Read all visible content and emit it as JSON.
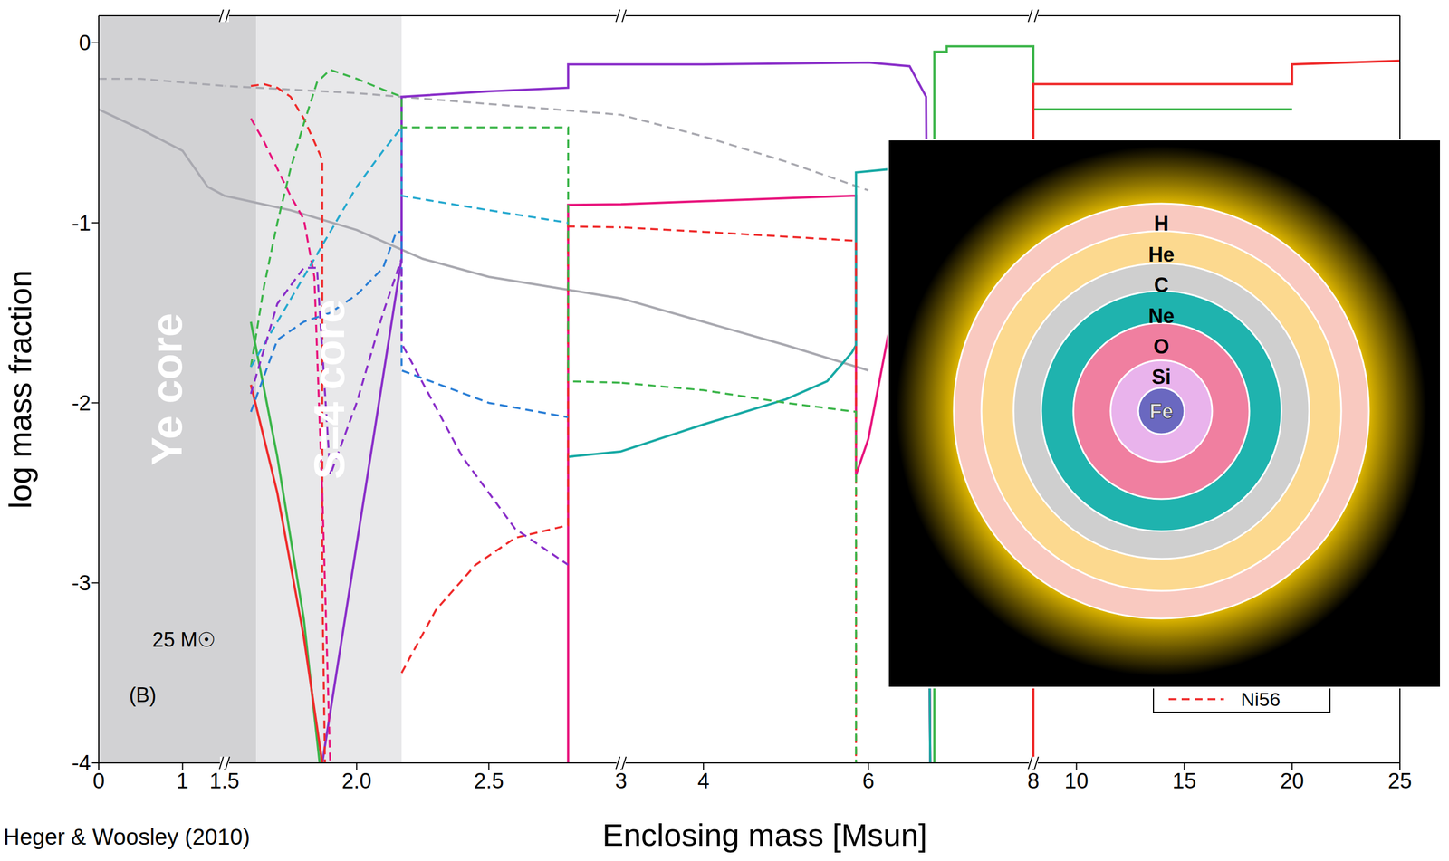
{
  "chart_data": {
    "type": "line",
    "x_label": "Enclosing mass [Msun]",
    "y_label": "log mass fraction",
    "credit": "Heger & Woosley (2010)",
    "annotations": [
      "25 M☉",
      "(B)"
    ],
    "legend": "lower right",
    "ylim": [
      -4,
      0.15
    ],
    "yticks": [
      -4,
      -3,
      -2,
      -1,
      0
    ],
    "x_segments": [
      {
        "xlim": [
          0,
          1.5
        ],
        "xticks": [
          0,
          1,
          1.5
        ]
      },
      {
        "xlim": [
          1.5,
          3
        ],
        "xticks": [
          {
            "value": 2,
            "label": "2.0"
          },
          2.5
        ]
      },
      {
        "xlim": [
          3,
          8
        ],
        "xticks": [
          3,
          4,
          6,
          8
        ]
      },
      {
        "xlim": [
          8,
          25
        ],
        "xticks": [
          10,
          15,
          20,
          25
        ]
      }
    ],
    "regions": [
      {
        "label": "Ye core",
        "x": [
          0,
          1.62
        ],
        "color": "#d2d2d4"
      },
      {
        "label": "S=4 core",
        "x": [
          1.62,
          2.17
        ],
        "color": "#e8e8ea"
      }
    ],
    "series": [
      {
        "color": "#a9a9b0",
        "line_style": "dashed",
        "x": [
          0,
          0.5,
          1,
          1.5,
          1.75,
          2,
          2.25,
          2.5,
          3,
          4,
          5,
          6
        ],
        "values": [
          -0.2,
          -0.2,
          -0.22,
          -0.24,
          -0.26,
          -0.28,
          -0.31,
          -0.34,
          -0.4,
          -0.52,
          -0.66,
          -0.82
        ]
      },
      {
        "color": "#a9a9b0",
        "line_style": "solid",
        "x": [
          0,
          0.5,
          1,
          1.3,
          1.5,
          1.75,
          2,
          2.25,
          2.5,
          3,
          4,
          5,
          6
        ],
        "values": [
          -0.37,
          -0.48,
          -0.6,
          -0.8,
          -0.85,
          -0.93,
          -1.04,
          -1.2,
          -1.3,
          -1.42,
          -1.55,
          -1.68,
          -1.82
        ]
      },
      {
        "color": "#8a2fc9",
        "line_style": "solid",
        "x": [
          1.87,
          2.17,
          2.17,
          2.5,
          2.8,
          2.8,
          4,
          6,
          6.5,
          6.7,
          6.75
        ],
        "values": [
          -4,
          -1.2,
          -0.3,
          -0.27,
          -0.25,
          -0.12,
          -0.12,
          -0.11,
          -0.13,
          -0.3,
          -4
        ]
      },
      {
        "color": "#e8157d",
        "line_style": "solid",
        "x": [
          2.8,
          2.8,
          4,
          5.8,
          5.85,
          5.85,
          6,
          6.5,
          6.7,
          6.75
        ],
        "values": [
          -4,
          -0.9,
          -0.88,
          -0.85,
          -0.85,
          -2.4,
          -2.2,
          -1.0,
          -0.9,
          -4
        ]
      },
      {
        "color": "#17a9a4",
        "line_style": "solid",
        "x": [
          2.8,
          3,
          4,
          5,
          5.5,
          5.8,
          5.85,
          5.85,
          6.3,
          6.7,
          6.75
        ],
        "values": [
          -2.3,
          -2.27,
          -2.12,
          -1.98,
          -1.88,
          -1.72,
          -1.68,
          -0.72,
          -0.7,
          -0.8,
          -4
        ]
      },
      {
        "color": "#3cb54a",
        "line_style": "solid",
        "x": [
          1.6,
          1.7,
          1.8,
          1.86,
          1.86,
          6.8,
          6.8,
          6.95,
          6.95,
          8,
          8,
          20
        ],
        "values": [
          -1.55,
          -2.3,
          -3.2,
          -4,
          null,
          -4,
          -0.05,
          -0.05,
          -0.02,
          -0.02,
          -0.37,
          -0.37
        ]
      },
      {
        "color": "#ef2b2b",
        "line_style": "solid",
        "x": [
          1.6,
          1.7,
          1.8,
          1.87,
          1.87,
          8,
          8,
          20,
          20,
          25
        ],
        "values": [
          -1.9,
          -2.5,
          -3.3,
          -4,
          null,
          -4,
          -0.23,
          -0.23,
          -0.12,
          -0.1
        ]
      },
      {
        "name": "Ni56",
        "color": "#ef2b2b",
        "line_style": "dashed",
        "x": [
          1.6,
          1.65,
          1.7,
          1.75,
          1.8,
          1.84,
          1.87,
          1.87,
          1.88
        ],
        "values": [
          -0.24,
          -0.23,
          -0.25,
          -0.3,
          -0.42,
          -0.55,
          -0.65,
          -3.0,
          -4
        ]
      },
      {
        "color": "#ef2b2b",
        "line_style": "dashed",
        "x": [
          2.17,
          2.3,
          2.45,
          2.6,
          2.8,
          2.8,
          4,
          5.85,
          5.85
        ],
        "values": [
          -3.5,
          -3.15,
          -2.9,
          -2.75,
          -2.68,
          -1.02,
          -1.05,
          -1.1,
          -4
        ]
      },
      {
        "color": "#e8157d",
        "line_style": "dashed",
        "x": [
          1.6,
          1.65,
          1.7,
          1.75,
          1.8,
          1.84,
          1.87,
          1.9
        ],
        "values": [
          -0.42,
          -0.55,
          -0.7,
          -0.85,
          -0.98,
          -1.3,
          -2.5,
          -4
        ]
      },
      {
        "color": "#3cb54a",
        "line_style": "dashed",
        "x": [
          1.6,
          1.65,
          1.7,
          1.75,
          1.8,
          1.85,
          1.9,
          2.0,
          2.1,
          2.17,
          2.17,
          2.8,
          2.8,
          4,
          5,
          5.85,
          5.85
        ],
        "values": [
          -1.8,
          -1.35,
          -1.0,
          -0.7,
          -0.45,
          -0.22,
          -0.15,
          -0.2,
          -0.26,
          -0.3,
          -0.47,
          -0.47,
          -1.88,
          -1.93,
          -2.0,
          -2.05,
          -4
        ]
      },
      {
        "color": "#26a9cf",
        "line_style": "dashed",
        "x": [
          1.6,
          1.7,
          1.8,
          1.9,
          2.0,
          2.1,
          2.17,
          2.17,
          2.5,
          2.8
        ],
        "values": [
          -1.8,
          -1.55,
          -1.3,
          -1.05,
          -0.8,
          -0.6,
          -0.47,
          -0.85,
          -0.93,
          -1.0
        ]
      },
      {
        "color": "#2b7fd6",
        "line_style": "dashed",
        "x": [
          1.6,
          1.7,
          1.8,
          1.9,
          2.0,
          2.1,
          2.15,
          2.17,
          2.17,
          2.5,
          2.8
        ],
        "values": [
          -2.05,
          -1.65,
          -1.55,
          -1.5,
          -1.4,
          -1.25,
          -1.05,
          -1.05,
          -1.82,
          -2.0,
          -2.08
        ]
      },
      {
        "color": "#8a2fc9",
        "line_style": "dashed",
        "x": [
          1.6,
          1.7,
          1.8,
          1.85,
          1.9,
          2.0,
          2.1,
          2.17,
          2.17,
          2.4,
          2.6,
          2.8
        ],
        "values": [
          -1.95,
          -1.45,
          -1.25,
          -1.25,
          -2.4,
          -2.0,
          -1.5,
          -1.2,
          -1.67,
          -2.3,
          -2.7,
          -2.9
        ]
      }
    ]
  },
  "inset": {
    "shells": [
      {
        "label": "H",
        "color": "#f9c9c0"
      },
      {
        "label": "He",
        "color": "#fcd98f"
      },
      {
        "label": "C",
        "color": "#cfcfcf"
      },
      {
        "label": "Ne",
        "color": "#1fb3ae"
      },
      {
        "label": "O",
        "color": "#f07fa0"
      },
      {
        "label": "Si",
        "color": "#e9b3ec"
      },
      {
        "label": "Fe",
        "color": "#6a68c0"
      }
    ]
  }
}
